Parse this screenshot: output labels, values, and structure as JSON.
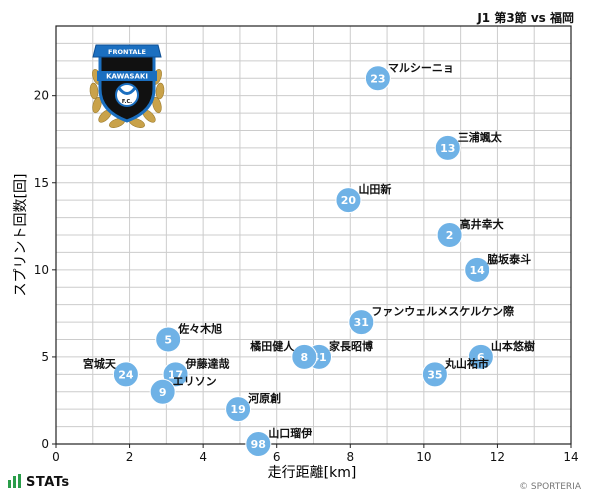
{
  "header": {
    "match": "J1 第3節 vs 福岡"
  },
  "footer": {
    "brand": "STATs",
    "copyright": "© SPORTERIA"
  },
  "crest": {
    "texts": [
      "FRONTALE",
      "KAWASAKI",
      "F.C."
    ],
    "colors": {
      "blue": "#1b6fc0",
      "black": "#111111",
      "gold": "#c9a24a"
    }
  },
  "colors": {
    "marker": "#6fb2e6",
    "marker_stroke": "#ffffff",
    "grid": "#cccccc",
    "frame": "#222222"
  },
  "chart_data": {
    "type": "scatter",
    "xlabel": "走行距離[km]",
    "ylabel": "スプリント回数[回]",
    "xlim": [
      0,
      14
    ],
    "ylim": [
      0,
      24
    ],
    "xticks": [
      0,
      2,
      4,
      6,
      8,
      10,
      12,
      14
    ],
    "yticks": [
      0,
      5,
      10,
      15,
      20
    ],
    "grid": true,
    "points": [
      {
        "number": "23",
        "name": "マルシーニョ",
        "x": 8.75,
        "y": 21,
        "label_side": "right"
      },
      {
        "number": "13",
        "name": "三浦颯太",
        "x": 10.65,
        "y": 17,
        "label_side": "right"
      },
      {
        "number": "20",
        "name": "山田新",
        "x": 7.95,
        "y": 14,
        "label_side": "right"
      },
      {
        "number": "2",
        "name": "高井幸大",
        "x": 10.7,
        "y": 12,
        "label_side": "right"
      },
      {
        "number": "14",
        "name": "脇坂泰斗",
        "x": 11.45,
        "y": 10,
        "label_side": "right"
      },
      {
        "number": "31",
        "name": "ファンウェルメスケルケン際",
        "x": 8.3,
        "y": 7,
        "label_side": "right"
      },
      {
        "number": "6",
        "name": "山本悠樹",
        "x": 11.55,
        "y": 5,
        "label_side": "right"
      },
      {
        "number": "41",
        "name": "家長昭博",
        "x": 7.15,
        "y": 5,
        "label_side": "right"
      },
      {
        "number": "8",
        "name": "橘田健人",
        "x": 6.75,
        "y": 5,
        "label_side": "left"
      },
      {
        "number": "35",
        "name": "丸山祐市",
        "x": 10.3,
        "y": 4,
        "label_side": "right"
      },
      {
        "number": "5",
        "name": "佐々木旭",
        "x": 3.05,
        "y": 6,
        "label_side": "right"
      },
      {
        "number": "17",
        "name": "伊藤達哉",
        "x": 3.25,
        "y": 4,
        "label_side": "right"
      },
      {
        "number": "24",
        "name": "宮城天",
        "x": 1.9,
        "y": 4,
        "label_side": "left"
      },
      {
        "number": "9",
        "name": "エリソン",
        "x": 2.9,
        "y": 3,
        "label_side": "right"
      },
      {
        "number": "19",
        "name": "河原創",
        "x": 4.95,
        "y": 2,
        "label_side": "right"
      },
      {
        "number": "98",
        "name": "山口瑠伊",
        "x": 5.5,
        "y": 0,
        "label_side": "right"
      }
    ]
  }
}
